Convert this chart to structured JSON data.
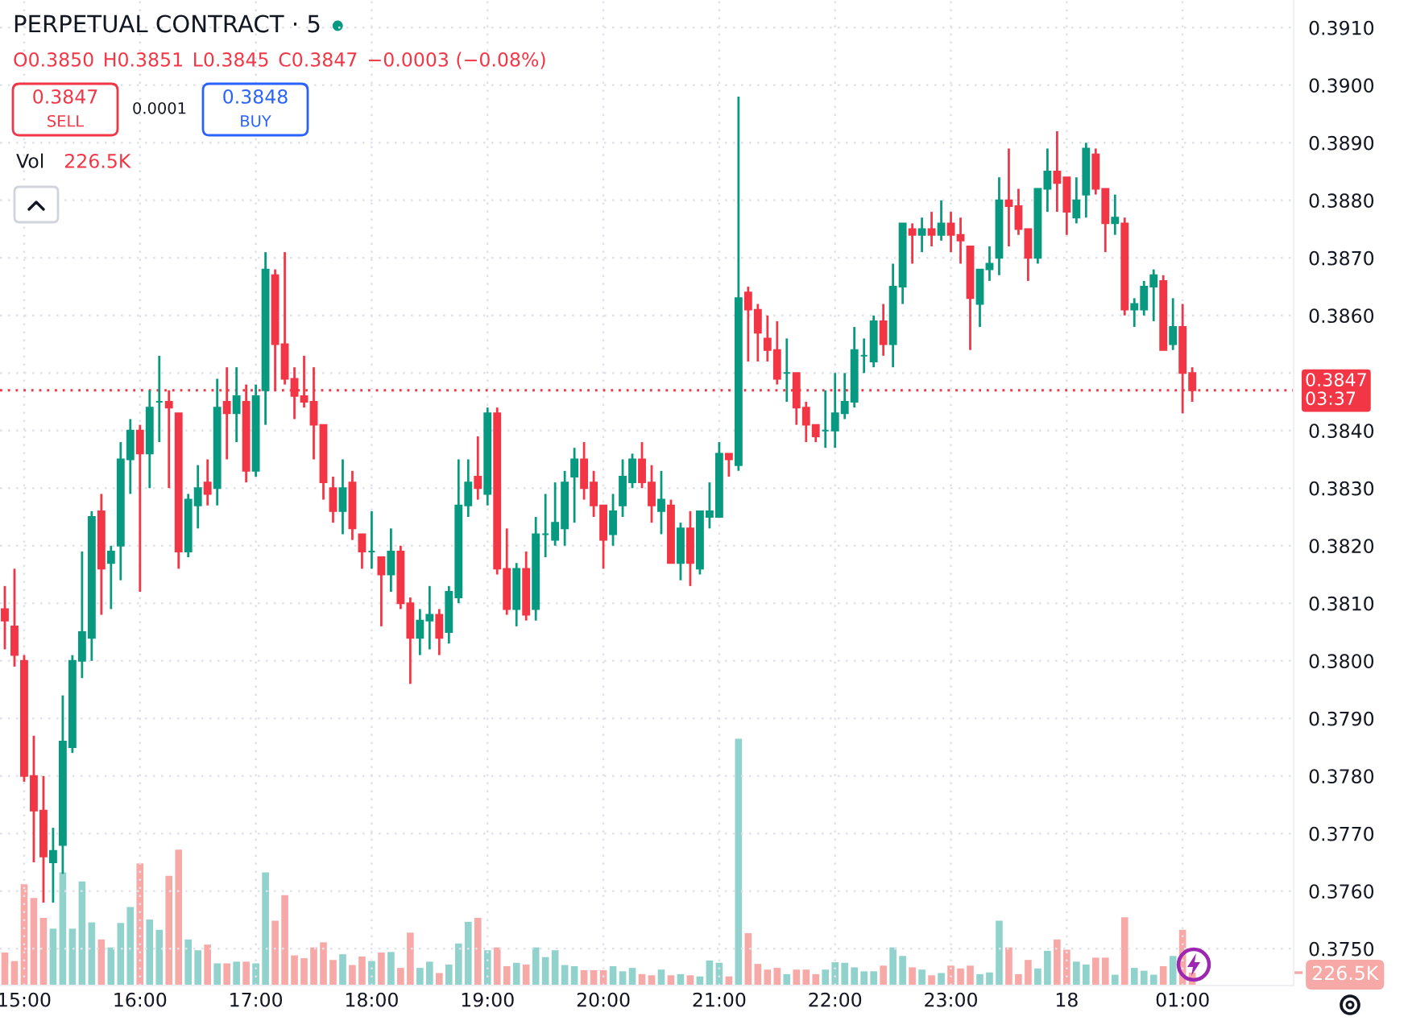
{
  "chart_data": {
    "type": "candlestick",
    "title": "PERPETUAL CONTRACT · 5",
    "annotations": [
      "O0.3850",
      "H0.3851",
      "L0.3845",
      "C0.3847",
      "−0.0003 (−0.08%)",
      "0.3847",
      "SELL",
      "0.0001",
      "0.3848",
      "BUY",
      "Vol",
      "226.5K"
    ],
    "categories": [
      null,
      null,
      "15:00",
      null,
      null,
      null,
      null,
      null,
      null,
      null,
      null,
      null,
      null,
      null,
      "16:00",
      null,
      null,
      null,
      null,
      null,
      null,
      null,
      null,
      null,
      null,
      null,
      "17:00",
      null,
      null,
      null,
      null,
      null,
      null,
      null,
      null,
      null,
      null,
      null,
      "18:00",
      null,
      null,
      null,
      null,
      null,
      null,
      null,
      null,
      null,
      null,
      null,
      "19:00",
      null,
      null,
      null,
      null,
      null,
      null,
      null,
      null,
      null,
      null,
      null,
      "20:00",
      null,
      null,
      null,
      null,
      null,
      null,
      null,
      null,
      null,
      null,
      null,
      "21:00",
      null,
      null,
      null,
      null,
      null,
      null,
      null,
      null,
      null,
      null,
      null,
      "22:00",
      null,
      null,
      null,
      null,
      null,
      null,
      null,
      null,
      null,
      null,
      null,
      "23:00",
      null,
      null,
      null,
      null,
      null,
      null,
      null,
      null,
      null,
      null,
      null,
      "18",
      null,
      null,
      null,
      null,
      null,
      null,
      null,
      null,
      null,
      null,
      null,
      "01:00",
      null,
      null,
      null,
      null,
      null,
      null,
      null,
      null,
      null,
      null,
      null
    ],
    "ylim": [
      0.37436,
      0.39148
    ],
    "yticks": [
      {
        "value": 0.375,
        "label": "0.3750"
      },
      {
        "value": 0.376,
        "label": "0.3760"
      },
      {
        "value": 0.377,
        "label": "0.3770"
      },
      {
        "value": 0.378,
        "label": "0.3780"
      },
      {
        "value": 0.379,
        "label": "0.3790"
      },
      {
        "value": 0.38,
        "label": "0.3800"
      },
      {
        "value": 0.381,
        "label": "0.3810"
      },
      {
        "value": 0.382,
        "label": "0.3820"
      },
      {
        "value": 0.383,
        "label": "0.3830"
      },
      {
        "value": 0.384,
        "label": "0.3840"
      },
      {
        "value": 0.385,
        "label": null
      },
      {
        "value": 0.386,
        "label": "0.3860"
      },
      {
        "value": 0.387,
        "label": "0.3870"
      },
      {
        "value": 0.388,
        "label": "0.3880"
      },
      {
        "value": 0.389,
        "label": "0.3890"
      },
      {
        "value": 0.39,
        "label": "0.3900"
      },
      {
        "value": 0.391,
        "label": "0.3910"
      }
    ],
    "y2lim": [
      0,
      17330
    ],
    "y2ticks": [
      {
        "value": 226.5,
        "label": "226.5K"
      }
    ],
    "grid": true,
    "ref_lines": [
      {
        "axis": "y",
        "value": 0.3847,
        "label": "0.3847\n03:37",
        "color": "#f23645",
        "line_style": "dotted"
      }
    ],
    "series": [
      {
        "ohlc": [
          [
            0.3809,
            0.3813,
            0.3802,
            0.3807
          ],
          [
            0.3806,
            0.3816,
            0.3799,
            0.3801
          ],
          [
            0.38,
            0.3801,
            0.3779,
            0.378
          ],
          [
            0.378,
            0.3787,
            0.3765,
            0.3774
          ],
          [
            0.3774,
            0.378,
            0.3758,
            0.3766
          ],
          [
            0.3765,
            0.3771,
            0.3758,
            0.3767
          ],
          [
            0.3768,
            0.3794,
            0.3763,
            0.3786
          ],
          [
            0.3785,
            0.3801,
            0.3784,
            0.38
          ],
          [
            0.38,
            0.3819,
            0.3797,
            0.3805
          ],
          [
            0.3804,
            0.3826,
            0.38,
            0.3825
          ],
          [
            0.3826,
            0.3829,
            0.3808,
            0.3816
          ],
          [
            0.3817,
            0.382,
            0.3809,
            0.3819
          ],
          [
            0.382,
            0.3838,
            0.3814,
            0.3835
          ],
          [
            0.3835,
            0.3842,
            0.3829,
            0.384
          ],
          [
            0.384,
            0.3841,
            0.3812,
            0.3836
          ],
          [
            0.3836,
            0.3847,
            0.383,
            0.3844
          ],
          [
            0.3845,
            0.3853,
            0.3838,
            0.3845
          ],
          [
            0.3845,
            0.3847,
            0.383,
            0.3844
          ],
          [
            0.3843,
            0.3843,
            0.3816,
            0.3819
          ],
          [
            0.3819,
            0.3829,
            0.3818,
            0.3828
          ],
          [
            0.3827,
            0.3834,
            0.3823,
            0.383
          ],
          [
            0.3831,
            0.3835,
            0.3827,
            0.3829
          ],
          [
            0.383,
            0.3849,
            0.3827,
            0.3844
          ],
          [
            0.3845,
            0.3851,
            0.3835,
            0.3843
          ],
          [
            0.3843,
            0.3851,
            0.3838,
            0.3846
          ],
          [
            0.3845,
            0.3848,
            0.3831,
            0.3833
          ],
          [
            0.3833,
            0.3848,
            0.3832,
            0.3846
          ],
          [
            0.3847,
            0.3871,
            0.3841,
            0.3868
          ],
          [
            0.3867,
            0.3868,
            0.3847,
            0.3855
          ],
          [
            0.3855,
            0.3871,
            0.3848,
            0.3849
          ],
          [
            0.3849,
            0.3851,
            0.3842,
            0.3846
          ],
          [
            0.3846,
            0.3853,
            0.3844,
            0.3845
          ],
          [
            0.3845,
            0.3851,
            0.3835,
            0.3841
          ],
          [
            0.3841,
            0.3841,
            0.3828,
            0.3831
          ],
          [
            0.383,
            0.3832,
            0.3824,
            0.3826
          ],
          [
            0.3826,
            0.3835,
            0.3822,
            0.383
          ],
          [
            0.3831,
            0.3833,
            0.3821,
            0.3823
          ],
          [
            0.3822,
            0.3822,
            0.3816,
            0.3819
          ],
          [
            0.3819,
            0.3826,
            0.3816,
            0.3819
          ],
          [
            0.3818,
            0.3818,
            0.3806,
            0.3815
          ],
          [
            0.3815,
            0.3823,
            0.3812,
            0.3819
          ],
          [
            0.3819,
            0.382,
            0.3809,
            0.381
          ],
          [
            0.381,
            0.3811,
            0.3796,
            0.3804
          ],
          [
            0.3804,
            0.3809,
            0.3801,
            0.3807
          ],
          [
            0.3807,
            0.3813,
            0.3802,
            0.3808
          ],
          [
            0.3808,
            0.3809,
            0.3801,
            0.3804
          ],
          [
            0.3805,
            0.3813,
            0.3803,
            0.3812
          ],
          [
            0.3811,
            0.3835,
            0.381,
            0.3827
          ],
          [
            0.3827,
            0.3835,
            0.3825,
            0.3831
          ],
          [
            0.3832,
            0.3839,
            0.3828,
            0.383
          ],
          [
            0.3829,
            0.3844,
            0.3827,
            0.3843
          ],
          [
            0.3843,
            0.3844,
            0.3815,
            0.3816
          ],
          [
            0.3816,
            0.3823,
            0.3808,
            0.3809
          ],
          [
            0.3809,
            0.3817,
            0.3806,
            0.3816
          ],
          [
            0.3816,
            0.3819,
            0.3807,
            0.3808
          ],
          [
            0.3809,
            0.3825,
            0.3807,
            0.3822
          ],
          [
            0.3822,
            0.3829,
            0.3818,
            0.3822
          ],
          [
            0.3821,
            0.3831,
            0.382,
            0.3824
          ],
          [
            0.3823,
            0.3833,
            0.382,
            0.3831
          ],
          [
            0.3832,
            0.3837,
            0.3824,
            0.3835
          ],
          [
            0.3835,
            0.3838,
            0.3828,
            0.383
          ],
          [
            0.3831,
            0.3833,
            0.3825,
            0.3827
          ],
          [
            0.3827,
            0.3827,
            0.3816,
            0.3821
          ],
          [
            0.3822,
            0.3829,
            0.382,
            0.3826
          ],
          [
            0.3827,
            0.3835,
            0.3825,
            0.3832
          ],
          [
            0.3831,
            0.3836,
            0.383,
            0.3835
          ],
          [
            0.3835,
            0.3838,
            0.383,
            0.3831
          ],
          [
            0.3831,
            0.3834,
            0.3824,
            0.3827
          ],
          [
            0.3826,
            0.3833,
            0.3822,
            0.3828
          ],
          [
            0.3827,
            0.3828,
            0.3817,
            0.3817
          ],
          [
            0.3817,
            0.3824,
            0.3814,
            0.3823
          ],
          [
            0.3823,
            0.3826,
            0.3813,
            0.3817
          ],
          [
            0.3816,
            0.3826,
            0.3815,
            0.3826
          ],
          [
            0.3825,
            0.3831,
            0.3823,
            0.3826
          ],
          [
            0.3825,
            0.3838,
            0.3825,
            0.3836
          ],
          [
            0.3836,
            0.3836,
            0.3832,
            0.3835
          ],
          [
            0.3834,
            0.3898,
            0.3833,
            0.3863
          ],
          [
            0.3864,
            0.3865,
            0.3852,
            0.3861
          ],
          [
            0.3861,
            0.3862,
            0.3852,
            0.3857
          ],
          [
            0.3856,
            0.386,
            0.3852,
            0.3854
          ],
          [
            0.3854,
            0.3859,
            0.3848,
            0.3849
          ],
          [
            0.385,
            0.3856,
            0.3845,
            0.385
          ],
          [
            0.385,
            0.385,
            0.3841,
            0.3844
          ],
          [
            0.3844,
            0.3845,
            0.3838,
            0.3841
          ],
          [
            0.3841,
            0.3841,
            0.3838,
            0.3839
          ],
          [
            0.384,
            0.3847,
            0.3837,
            0.384
          ],
          [
            0.384,
            0.385,
            0.3837,
            0.3843
          ],
          [
            0.3843,
            0.385,
            0.3842,
            0.3845
          ],
          [
            0.3845,
            0.3858,
            0.3844,
            0.3854
          ],
          [
            0.3853,
            0.3856,
            0.385,
            0.3853
          ],
          [
            0.3852,
            0.386,
            0.3851,
            0.3859
          ],
          [
            0.3859,
            0.3862,
            0.3853,
            0.3855
          ],
          [
            0.3855,
            0.3869,
            0.3851,
            0.3865
          ],
          [
            0.3865,
            0.3876,
            0.3862,
            0.3876
          ],
          [
            0.3875,
            0.3876,
            0.3869,
            0.3874
          ],
          [
            0.3874,
            0.3877,
            0.3871,
            0.3875
          ],
          [
            0.3875,
            0.3878,
            0.3872,
            0.3874
          ],
          [
            0.3874,
            0.388,
            0.3873,
            0.3876
          ],
          [
            0.3876,
            0.3878,
            0.3871,
            0.3874
          ],
          [
            0.3874,
            0.3877,
            0.3869,
            0.3873
          ],
          [
            0.3872,
            0.3872,
            0.3854,
            0.3863
          ],
          [
            0.3862,
            0.3868,
            0.3858,
            0.3868
          ],
          [
            0.3868,
            0.3872,
            0.3866,
            0.3869
          ],
          [
            0.387,
            0.3884,
            0.3867,
            0.388
          ],
          [
            0.388,
            0.3889,
            0.3872,
            0.3879
          ],
          [
            0.3879,
            0.3882,
            0.3874,
            0.3875
          ],
          [
            0.3875,
            0.3875,
            0.3866,
            0.387
          ],
          [
            0.387,
            0.3882,
            0.3869,
            0.3882
          ],
          [
            0.3882,
            0.3889,
            0.3878,
            0.3885
          ],
          [
            0.3885,
            0.3892,
            0.3878,
            0.3883
          ],
          [
            0.3884,
            0.3884,
            0.3874,
            0.3878
          ],
          [
            0.3877,
            0.3884,
            0.3876,
            0.388
          ],
          [
            0.3881,
            0.389,
            0.3877,
            0.3889
          ],
          [
            0.3888,
            0.3889,
            0.3881,
            0.3882
          ],
          [
            0.3882,
            0.3882,
            0.3871,
            0.3876
          ],
          [
            0.3876,
            0.3881,
            0.3874,
            0.3877
          ],
          [
            0.3876,
            0.3877,
            0.386,
            0.3861
          ],
          [
            0.3861,
            0.3863,
            0.3858,
            0.3862
          ],
          [
            0.3861,
            0.3866,
            0.386,
            0.3865
          ],
          [
            0.3865,
            0.3868,
            0.3859,
            0.3867
          ],
          [
            0.3866,
            0.3867,
            0.3854,
            0.3854
          ],
          [
            0.3855,
            0.3863,
            0.3854,
            0.3858
          ],
          [
            0.3858,
            0.3862,
            0.3843,
            0.385
          ],
          [
            0.385,
            0.3851,
            0.3845,
            0.3847
          ],
          null,
          null,
          null,
          null,
          null,
          null,
          null,
          null,
          null,
          null
        ],
        "colors": [
          "#f23645",
          "#f23645",
          "#f23645",
          "#f23645",
          "#f23645",
          "#089981",
          "#089981",
          "#089981",
          "#089981",
          "#089981",
          "#f23645",
          "#089981",
          "#089981",
          "#089981",
          "#f23645",
          "#089981",
          "#089981",
          "#f23645",
          "#f23645",
          "#089981",
          "#089981",
          "#f23645",
          "#089981",
          "#f23645",
          "#089981",
          "#f23645",
          "#089981",
          "#089981",
          "#f23645",
          "#f23645",
          "#f23645",
          "#f23645",
          "#f23645",
          "#f23645",
          "#f23645",
          "#089981",
          "#f23645",
          "#f23645",
          "#089981",
          "#f23645",
          "#089981",
          "#f23645",
          "#f23645",
          "#089981",
          "#089981",
          "#f23645",
          "#089981",
          "#089981",
          "#089981",
          "#f23645",
          "#089981",
          "#f23645",
          "#f23645",
          "#089981",
          "#f23645",
          "#089981",
          "#089981",
          "#089981",
          "#089981",
          "#089981",
          "#f23645",
          "#f23645",
          "#f23645",
          "#089981",
          "#089981",
          "#089981",
          "#f23645",
          "#f23645",
          "#089981",
          "#f23645",
          "#089981",
          "#f23645",
          "#089981",
          "#089981",
          "#089981",
          "#f23645",
          "#089981",
          "#f23645",
          "#f23645",
          "#f23645",
          "#f23645",
          "#089981",
          "#f23645",
          "#f23645",
          "#f23645",
          "#089981",
          "#089981",
          "#089981",
          "#089981",
          "#089981",
          "#089981",
          "#f23645",
          "#089981",
          "#089981",
          "#f23645",
          "#089981",
          "#f23645",
          "#089981",
          "#f23645",
          "#f23645",
          "#f23645",
          "#089981",
          "#089981",
          "#089981",
          "#f23645",
          "#f23645",
          "#f23645",
          "#089981",
          "#089981",
          "#f23645",
          "#f23645",
          "#089981",
          "#089981",
          "#f23645",
          "#f23645",
          "#089981",
          "#f23645",
          "#089981",
          "#089981",
          "#089981",
          "#f23645",
          "#089981",
          "#f23645",
          "#f23645",
          null,
          null,
          null,
          null,
          null,
          null,
          null,
          null,
          null,
          null
        ]
      },
      {
        "type": "bar",
        "axis": "y2",
        "values": [
          580,
          430,
          1780,
          1540,
          1190,
          1000,
          1990,
          1000,
          1830,
          1110,
          810,
          670,
          1100,
          1380,
          2150,
          1160,
          980,
          1930,
          2390,
          810,
          620,
          720,
          390,
          390,
          420,
          420,
          390,
          1990,
          1140,
          1590,
          530,
          480,
          670,
          760,
          450,
          550,
          360,
          510,
          430,
          580,
          590,
          310,
          930,
          310,
          420,
          220,
          370,
          740,
          1120,
          1190,
          620,
          670,
          340,
          400,
          370,
          670,
          500,
          620,
          360,
          340,
          270,
          270,
          270,
          340,
          250,
          310,
          200,
          180,
          280,
          180,
          200,
          180,
          160,
          440,
          400,
          160,
          4340,
          920,
          380,
          280,
          310,
          200,
          280,
          280,
          200,
          280,
          410,
          400,
          320,
          250,
          250,
          350,
          670,
          520,
          320,
          280,
          180,
          220,
          350,
          300,
          350,
          200,
          230,
          1140,
          670,
          200,
          450,
          300,
          610,
          810,
          630,
          420,
          370,
          490,
          490,
          190,
          1200,
          310,
          260,
          190,
          340,
          520,
          980,
          226.5,
          null,
          null,
          null,
          null,
          null,
          null,
          null,
          null,
          null,
          null
        ],
        "colors": [
          "#f7a9a7",
          "#f7a9a7",
          "#f7a9a7",
          "#f7a9a7",
          "#f7a9a7",
          "#92d2cc",
          "#92d2cc",
          "#92d2cc",
          "#92d2cc",
          "#92d2cc",
          "#f7a9a7",
          "#92d2cc",
          "#92d2cc",
          "#92d2cc",
          "#f7a9a7",
          "#92d2cc",
          "#92d2cc",
          "#f7a9a7",
          "#f7a9a7",
          "#92d2cc",
          "#92d2cc",
          "#f7a9a7",
          "#92d2cc",
          "#f7a9a7",
          "#92d2cc",
          "#f7a9a7",
          "#92d2cc",
          "#92d2cc",
          "#f7a9a7",
          "#f7a9a7",
          "#f7a9a7",
          "#f7a9a7",
          "#f7a9a7",
          "#f7a9a7",
          "#f7a9a7",
          "#92d2cc",
          "#f7a9a7",
          "#f7a9a7",
          "#92d2cc",
          "#f7a9a7",
          "#92d2cc",
          "#f7a9a7",
          "#f7a9a7",
          "#92d2cc",
          "#92d2cc",
          "#f7a9a7",
          "#92d2cc",
          "#92d2cc",
          "#92d2cc",
          "#f7a9a7",
          "#92d2cc",
          "#f7a9a7",
          "#f7a9a7",
          "#92d2cc",
          "#f7a9a7",
          "#92d2cc",
          "#92d2cc",
          "#92d2cc",
          "#92d2cc",
          "#92d2cc",
          "#f7a9a7",
          "#f7a9a7",
          "#f7a9a7",
          "#92d2cc",
          "#92d2cc",
          "#92d2cc",
          "#f7a9a7",
          "#f7a9a7",
          "#92d2cc",
          "#f7a9a7",
          "#92d2cc",
          "#f7a9a7",
          "#92d2cc",
          "#92d2cc",
          "#92d2cc",
          "#f7a9a7",
          "#92d2cc",
          "#f7a9a7",
          "#f7a9a7",
          "#f7a9a7",
          "#f7a9a7",
          "#92d2cc",
          "#f7a9a7",
          "#f7a9a7",
          "#f7a9a7",
          "#92d2cc",
          "#92d2cc",
          "#92d2cc",
          "#92d2cc",
          "#92d2cc",
          "#92d2cc",
          "#f7a9a7",
          "#92d2cc",
          "#92d2cc",
          "#f7a9a7",
          "#92d2cc",
          "#f7a9a7",
          "#92d2cc",
          "#f7a9a7",
          "#f7a9a7",
          "#f7a9a7",
          "#92d2cc",
          "#92d2cc",
          "#92d2cc",
          "#f7a9a7",
          "#f7a9a7",
          "#f7a9a7",
          "#92d2cc",
          "#92d2cc",
          "#f7a9a7",
          "#f7a9a7",
          "#92d2cc",
          "#92d2cc",
          "#f7a9a7",
          "#f7a9a7",
          "#92d2cc",
          "#f7a9a7",
          "#92d2cc",
          "#92d2cc",
          "#92d2cc",
          "#f7a9a7",
          "#92d2cc",
          "#f7a9a7",
          "#f7a9a7",
          null,
          null,
          null,
          null,
          null,
          null,
          null,
          null,
          null,
          null
        ]
      }
    ]
  }
}
